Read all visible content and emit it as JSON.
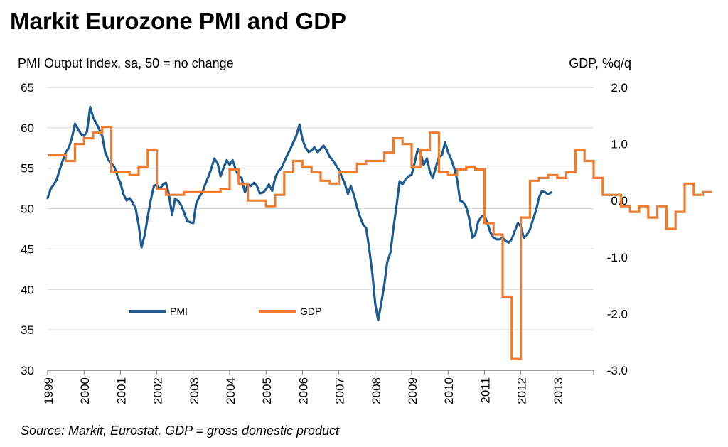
{
  "chart_data": {
    "type": "line",
    "title": "Markit Eurozone PMI and GDP",
    "left_axis_label": "PMI Output Index, sa, 50 = no change",
    "right_axis_label": "GDP, %q/q",
    "source": "Source: Markit, Eurostat. GDP = gross domestic product",
    "left_ylim": [
      30,
      65
    ],
    "left_ticks": [
      30,
      35,
      40,
      45,
      50,
      55,
      60,
      65
    ],
    "right_ylim": [
      -3.0,
      2.0
    ],
    "right_ticks": [
      "-3.0",
      "-2.0",
      "-1.0",
      "0.0",
      "1.0",
      "2.0"
    ],
    "x_tick_labels": [
      "1999",
      "2000",
      "2001",
      "2002",
      "2003",
      "2004",
      "2005",
      "2006",
      "2007",
      "2008",
      "2009",
      "2010",
      "2011",
      "2012",
      "2013"
    ],
    "grid": "horizontal",
    "legend": {
      "placement": "bottom-left",
      "entries": [
        "PMI",
        "GDP"
      ]
    },
    "series": [
      {
        "name": "PMI",
        "axis": "left",
        "color": "#1f5a8c",
        "points": [
          [
            1999.0,
            51.3
          ],
          [
            1999.08,
            52.4
          ],
          [
            1999.17,
            53.0
          ],
          [
            1999.25,
            53.6
          ],
          [
            1999.33,
            54.8
          ],
          [
            1999.42,
            56.0
          ],
          [
            1999.5,
            57.0
          ],
          [
            1999.58,
            57.5
          ],
          [
            1999.67,
            58.8
          ],
          [
            1999.75,
            60.5
          ],
          [
            1999.83,
            59.9
          ],
          [
            1999.92,
            59.2
          ],
          [
            2000.0,
            59.0
          ],
          [
            2000.08,
            59.5
          ],
          [
            2000.17,
            62.6
          ],
          [
            2000.25,
            61.3
          ],
          [
            2000.33,
            60.6
          ],
          [
            2000.42,
            59.8
          ],
          [
            2000.5,
            59.0
          ],
          [
            2000.58,
            57.0
          ],
          [
            2000.67,
            56.0
          ],
          [
            2000.75,
            55.6
          ],
          [
            2000.83,
            55.2
          ],
          [
            2000.92,
            54.0
          ],
          [
            2001.0,
            53.2
          ],
          [
            2001.08,
            51.8
          ],
          [
            2001.17,
            51.0
          ],
          [
            2001.25,
            51.3
          ],
          [
            2001.33,
            50.8
          ],
          [
            2001.42,
            50.0
          ],
          [
            2001.5,
            48.0
          ],
          [
            2001.58,
            45.2
          ],
          [
            2001.67,
            46.8
          ],
          [
            2001.75,
            49.0
          ],
          [
            2001.83,
            51.0
          ],
          [
            2001.92,
            52.8
          ],
          [
            2002.0,
            53.0
          ],
          [
            2002.08,
            52.4
          ],
          [
            2002.17,
            53.0
          ],
          [
            2002.25,
            53.2
          ],
          [
            2002.33,
            51.8
          ],
          [
            2002.42,
            49.2
          ],
          [
            2002.5,
            51.2
          ],
          [
            2002.58,
            51.0
          ],
          [
            2002.67,
            50.4
          ],
          [
            2002.75,
            49.5
          ],
          [
            2002.83,
            48.5
          ],
          [
            2002.92,
            48.3
          ],
          [
            2003.0,
            48.2
          ],
          [
            2003.08,
            50.6
          ],
          [
            2003.17,
            51.5
          ],
          [
            2003.25,
            52.0
          ],
          [
            2003.33,
            53.0
          ],
          [
            2003.42,
            54.0
          ],
          [
            2003.5,
            55.0
          ],
          [
            2003.58,
            56.2
          ],
          [
            2003.67,
            55.6
          ],
          [
            2003.75,
            54.0
          ],
          [
            2003.83,
            55.0
          ],
          [
            2003.92,
            56.0
          ],
          [
            2004.0,
            55.4
          ],
          [
            2004.08,
            56.0
          ],
          [
            2004.17,
            54.8
          ],
          [
            2004.25,
            54.0
          ],
          [
            2004.33,
            53.8
          ],
          [
            2004.42,
            52.0
          ],
          [
            2004.5,
            53.0
          ],
          [
            2004.58,
            52.8
          ],
          [
            2004.67,
            53.2
          ],
          [
            2004.75,
            52.8
          ],
          [
            2004.83,
            51.9
          ],
          [
            2004.92,
            52.0
          ],
          [
            2005.0,
            52.4
          ],
          [
            2005.08,
            53.0
          ],
          [
            2005.17,
            52.2
          ],
          [
            2005.25,
            53.8
          ],
          [
            2005.33,
            54.6
          ],
          [
            2005.42,
            55.0
          ],
          [
            2005.5,
            55.8
          ],
          [
            2005.58,
            56.6
          ],
          [
            2005.67,
            57.4
          ],
          [
            2005.75,
            58.2
          ],
          [
            2005.83,
            59.0
          ],
          [
            2005.92,
            60.4
          ],
          [
            2006.0,
            58.6
          ],
          [
            2006.08,
            57.6
          ],
          [
            2006.17,
            57.0
          ],
          [
            2006.25,
            57.2
          ],
          [
            2006.33,
            57.6
          ],
          [
            2006.42,
            57.0
          ],
          [
            2006.5,
            57.4
          ],
          [
            2006.58,
            57.8
          ],
          [
            2006.67,
            57.2
          ],
          [
            2006.75,
            56.4
          ],
          [
            2006.83,
            56.0
          ],
          [
            2006.92,
            55.4
          ],
          [
            2007.0,
            54.8
          ],
          [
            2007.08,
            54.0
          ],
          [
            2007.17,
            53.0
          ],
          [
            2007.25,
            51.8
          ],
          [
            2007.33,
            52.8
          ],
          [
            2007.42,
            51.6
          ],
          [
            2007.5,
            50.2
          ],
          [
            2007.58,
            49.0
          ],
          [
            2007.67,
            48.0
          ],
          [
            2007.75,
            47.6
          ],
          [
            2007.83,
            45.2
          ],
          [
            2007.92,
            42.0
          ],
          [
            2008.0,
            38.2
          ],
          [
            2008.08,
            36.2
          ],
          [
            2008.17,
            38.4
          ],
          [
            2008.25,
            40.6
          ],
          [
            2008.33,
            43.4
          ],
          [
            2008.42,
            44.6
          ],
          [
            2008.5,
            47.6
          ],
          [
            2008.58,
            50.2
          ],
          [
            2008.67,
            53.4
          ],
          [
            2008.75,
            53.0
          ],
          [
            2008.83,
            53.6
          ],
          [
            2008.92,
            54.0
          ],
          [
            2009.0,
            54.2
          ],
          [
            2009.08,
            55.6
          ],
          [
            2009.17,
            57.4
          ],
          [
            2009.25,
            56.8
          ],
          [
            2009.33,
            55.4
          ],
          [
            2009.42,
            56.2
          ],
          [
            2009.5,
            54.6
          ],
          [
            2009.58,
            53.8
          ],
          [
            2009.67,
            55.2
          ],
          [
            2009.75,
            56.4
          ],
          [
            2009.83,
            56.6
          ],
          [
            2009.92,
            58.2
          ],
          [
            2010.0,
            57.0
          ],
          [
            2010.08,
            56.2
          ],
          [
            2010.17,
            55.0
          ],
          [
            2010.25,
            53.6
          ],
          [
            2010.33,
            51.0
          ],
          [
            2010.42,
            50.8
          ],
          [
            2010.5,
            50.2
          ],
          [
            2010.58,
            48.8
          ],
          [
            2010.67,
            46.4
          ],
          [
            2010.75,
            46.8
          ],
          [
            2010.83,
            48.4
          ],
          [
            2010.92,
            49.0
          ],
          [
            2011.0,
            49.2
          ],
          [
            2011.08,
            48.2
          ],
          [
            2011.17,
            47.0
          ],
          [
            2011.25,
            46.4
          ],
          [
            2011.33,
            46.2
          ],
          [
            2011.42,
            46.2
          ],
          [
            2011.5,
            46.4
          ],
          [
            2011.58,
            46.0
          ],
          [
            2011.67,
            45.8
          ],
          [
            2011.75,
            46.2
          ],
          [
            2011.83,
            47.2
          ],
          [
            2011.92,
            48.2
          ],
          [
            2012.0,
            47.8
          ],
          [
            2012.08,
            46.4
          ],
          [
            2012.17,
            46.8
          ],
          [
            2012.25,
            47.4
          ],
          [
            2012.33,
            48.6
          ],
          [
            2012.42,
            49.8
          ],
          [
            2012.5,
            51.4
          ],
          [
            2012.58,
            52.2
          ],
          [
            2012.67,
            52.0
          ],
          [
            2012.75,
            51.8
          ],
          [
            2012.83,
            52.0
          ]
        ]
      },
      {
        "name": "GDP",
        "axis": "right",
        "color": "#ed7d31",
        "quarterly": [
          0.8,
          0.8,
          0.7,
          1.0,
          1.1,
          1.2,
          1.3,
          0.5,
          0.5,
          0.45,
          0.6,
          0.9,
          0.2,
          0.1,
          0.1,
          0.15,
          0.15,
          0.15,
          0.15,
          0.2,
          0.55,
          0.3,
          0.0,
          0.0,
          -0.1,
          0.1,
          0.5,
          0.7,
          0.6,
          0.5,
          0.35,
          0.3,
          0.5,
          0.5,
          0.65,
          0.7,
          0.7,
          0.85,
          1.1,
          1.0,
          0.6,
          0.9,
          1.2,
          0.5,
          0.45,
          0.55,
          0.6,
          0.55,
          -0.4,
          -0.6,
          -1.7,
          -2.8,
          -0.3,
          0.35,
          0.4,
          0.45,
          0.4,
          0.5,
          0.9,
          0.7,
          0.4,
          0.1,
          0.1,
          -0.1,
          -0.2,
          -0.1,
          -0.3,
          -0.1,
          -0.5,
          -0.2,
          0.3,
          0.1,
          0.15
        ]
      }
    ]
  }
}
